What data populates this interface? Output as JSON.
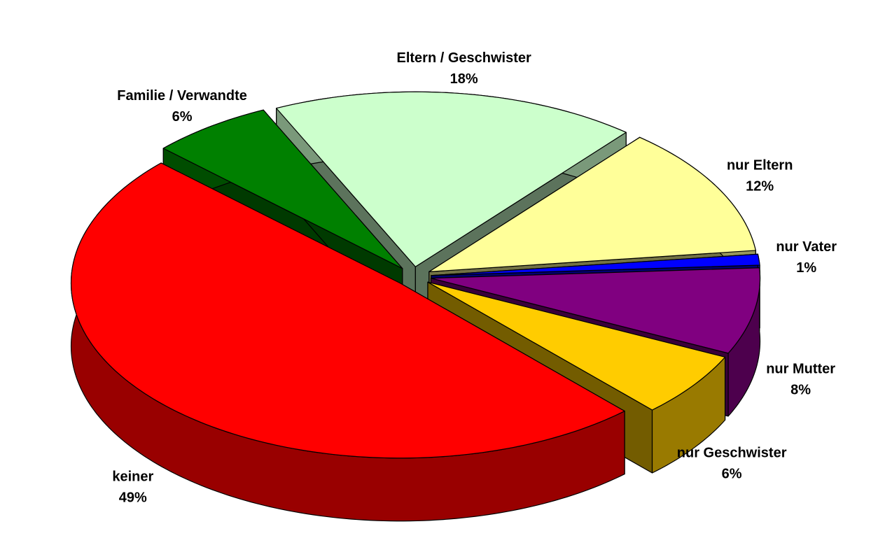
{
  "chart_data": {
    "type": "pie3d",
    "categories": [
      "Eltern / Geschwister",
      "nur Eltern",
      "nur Vater",
      "nur Mutter",
      "nur Geschwister",
      "keiner",
      "Familie / Verwandte"
    ],
    "values": [
      18,
      12,
      1,
      8,
      6,
      49,
      6
    ],
    "value_labels": [
      "18%",
      "12%",
      "1%",
      "8%",
      "6%",
      "49%",
      "6%"
    ],
    "colors": [
      "#ccffcc",
      "#ffff99",
      "#0000ff",
      "#800080",
      "#ffcc00",
      "#ff0000",
      "#008000"
    ]
  }
}
